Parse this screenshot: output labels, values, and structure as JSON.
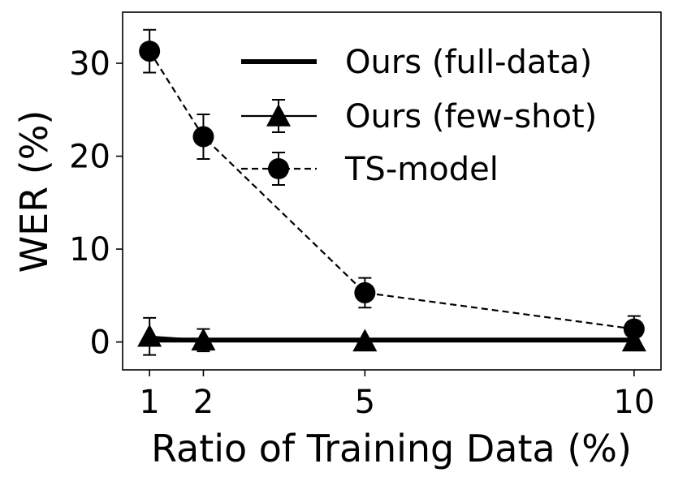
{
  "chart_data": {
    "type": "line",
    "xlabel": "Ratio of Training Data (%)",
    "ylabel": "WER (%)",
    "x": [
      1,
      2,
      5,
      10
    ],
    "x_tick_labels": [
      "1",
      "2",
      "5",
      "10"
    ],
    "y_ticks": [
      0,
      10,
      20,
      30
    ],
    "y_tick_labels": [
      "0",
      "10",
      "20",
      "30"
    ],
    "xlim": [
      0.5,
      10.5
    ],
    "ylim": [
      -3,
      35.5
    ],
    "grid": false,
    "legend_position": "top-right",
    "series": [
      {
        "name": "Ours (full-data)",
        "style": "solid-thick",
        "marker": "none",
        "color": "#000000",
        "values": [
          0.2,
          0.2,
          0.2,
          0.2
        ]
      },
      {
        "name": "Ours (few-shot)",
        "style": "solid",
        "marker": "triangle",
        "color": "#000000",
        "values": [
          0.6,
          0.2,
          0.1,
          0.1
        ],
        "error": [
          2.0,
          1.2,
          0.0,
          0.0
        ]
      },
      {
        "name": "TS-model",
        "style": "dashed",
        "marker": "circle",
        "color": "#000000",
        "values": [
          31.3,
          22.1,
          5.3,
          1.4
        ],
        "error": [
          2.3,
          2.4,
          1.6,
          1.4
        ]
      }
    ]
  }
}
